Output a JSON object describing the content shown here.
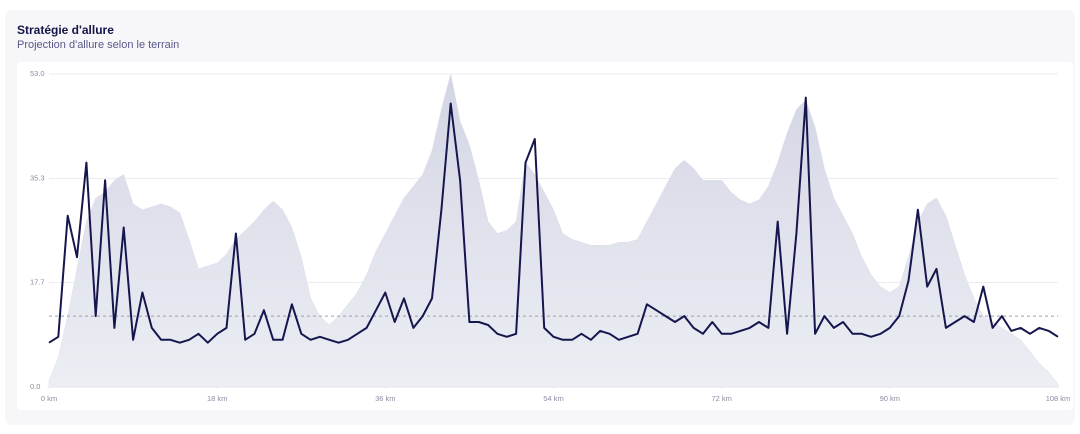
{
  "chart_data": {
    "type": "line",
    "title": "Stratégie d'allure",
    "subtitle": "Projection d'allure selon le terrain",
    "x": [
      0,
      1,
      2,
      3,
      4,
      5,
      6,
      7,
      8,
      9,
      10,
      11,
      12,
      13,
      14,
      15,
      16,
      17,
      18,
      19,
      20,
      21,
      22,
      23,
      24,
      25,
      26,
      27,
      28,
      29,
      30,
      31,
      32,
      33,
      34,
      35,
      36,
      37,
      38,
      39,
      40,
      41,
      42,
      43,
      44,
      45,
      46,
      47,
      48,
      49,
      50,
      51,
      52,
      53,
      54,
      55,
      56,
      57,
      58,
      59,
      60,
      61,
      62,
      63,
      64,
      65,
      66,
      67,
      68,
      69,
      70,
      71,
      72,
      73,
      74,
      75,
      76,
      77,
      78,
      79,
      80,
      81,
      82,
      83,
      84,
      85,
      86,
      87,
      88,
      89,
      90,
      91,
      92,
      93,
      94,
      95,
      96,
      97,
      98,
      99,
      100,
      101,
      102,
      103,
      104,
      105,
      106,
      107,
      108
    ],
    "series": [
      {
        "kind": "area",
        "color": "#dcdde9",
        "values": [
          1,
          5,
          12,
          20,
          28,
          32,
          33,
          35,
          36,
          31,
          30,
          30.5,
          31,
          30.5,
          29.5,
          25,
          20,
          20.5,
          21,
          22.5,
          25,
          26.5,
          28,
          30,
          31.5,
          30,
          27,
          22,
          15,
          12,
          10.5,
          12,
          14,
          16,
          19,
          23,
          26,
          29,
          32,
          34,
          36,
          40,
          47,
          53,
          45,
          41,
          35,
          28,
          26,
          26.5,
          28,
          38,
          36,
          33,
          30,
          26,
          25,
          24.5,
          24,
          24,
          24,
          24.5,
          24.5,
          25,
          28,
          31,
          34,
          37,
          38.4,
          37,
          35,
          35,
          35,
          33,
          31.7,
          31,
          31.7,
          34,
          38,
          43,
          47,
          48.6,
          44,
          37,
          32,
          29,
          26,
          22,
          19,
          17,
          16,
          17,
          22,
          28,
          31,
          32,
          29,
          24,
          19,
          15,
          12,
          11,
          10,
          9,
          8,
          6,
          4,
          2.5,
          0.5
        ]
      },
      {
        "kind": "line",
        "color": "#15164d",
        "values": [
          7.5,
          8.5,
          29,
          22,
          38,
          12,
          35,
          10,
          27,
          8,
          16,
          10,
          8,
          8,
          7.5,
          8,
          9,
          7.5,
          9,
          10,
          26,
          8,
          9,
          13,
          8,
          8,
          14,
          9,
          8,
          8.5,
          8,
          7.5,
          8,
          9,
          10,
          13,
          16,
          11,
          15,
          10,
          12,
          15,
          30,
          48,
          35,
          11,
          11,
          10.5,
          9,
          8.5,
          9,
          38,
          42,
          10,
          8.5,
          8,
          8,
          9,
          8,
          9.5,
          9,
          8,
          8.5,
          9,
          14,
          13,
          12,
          11,
          12,
          10,
          9,
          11,
          9,
          9,
          9.5,
          10,
          11,
          10,
          28,
          9,
          26,
          49,
          9,
          12,
          10,
          11,
          9,
          9,
          8.5,
          9,
          10,
          12,
          18,
          30,
          17,
          20,
          10,
          11,
          12,
          11,
          17,
          10,
          12,
          9.5,
          10,
          9,
          10,
          9.5,
          8.5
        ]
      }
    ],
    "reference_line": 12,
    "xlim": [
      0,
      108
    ],
    "xticks": [
      {
        "value": 0,
        "label": "0 km"
      },
      {
        "value": 18,
        "label": "18 km"
      },
      {
        "value": 36,
        "label": "36 km"
      },
      {
        "value": 54,
        "label": "54 km"
      },
      {
        "value": 72,
        "label": "72 km"
      },
      {
        "value": 90,
        "label": "90 km"
      },
      {
        "value": 108,
        "label": "108 km"
      }
    ],
    "ylim": [
      0,
      53
    ],
    "yticks": [
      {
        "value": 0,
        "label": "0.0"
      },
      17.7,
      35.3,
      {
        "value": 53,
        "label": "53.0"
      }
    ],
    "grid": true
  }
}
